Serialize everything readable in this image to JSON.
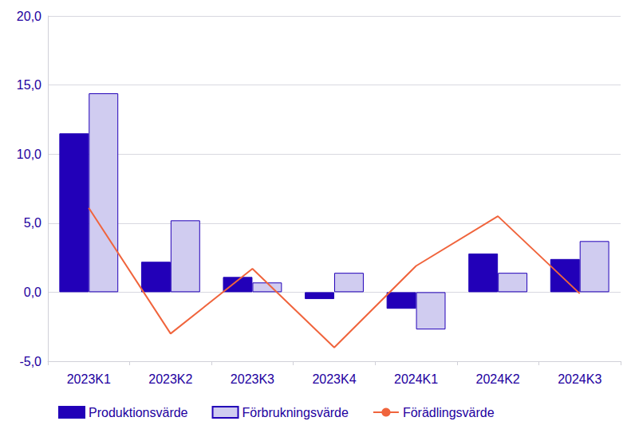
{
  "chart_data": {
    "type": "bar",
    "categories": [
      "2023K1",
      "2023K2",
      "2023K3",
      "2023K4",
      "2024K1",
      "2024K2",
      "2024K3"
    ],
    "series": [
      {
        "name": "Produktionsvärde",
        "type": "bar",
        "color": "#2200b8",
        "values": [
          11.5,
          2.2,
          1.1,
          -0.5,
          -1.2,
          2.8,
          2.4
        ]
      },
      {
        "name": "Förbrukningsvärde",
        "type": "bar",
        "color": "#d0ccf0",
        "values": [
          14.4,
          5.2,
          0.7,
          1.4,
          -2.7,
          1.4,
          3.7
        ]
      },
      {
        "name": "Förädlingsvärde",
        "type": "line",
        "color": "#f0643c",
        "values": [
          6.1,
          -3.0,
          1.7,
          -4.0,
          1.9,
          5.5,
          -0.1
        ]
      }
    ],
    "ylim": [
      -5,
      20
    ],
    "yticks": [
      {
        "value": -5,
        "label": "-5,0"
      },
      {
        "value": 0,
        "label": "0,0"
      },
      {
        "value": 5,
        "label": "5,0"
      },
      {
        "value": 10,
        "label": "10,0"
      },
      {
        "value": 15,
        "label": "15,0"
      },
      {
        "value": 20,
        "label": "20,0"
      }
    ],
    "grid": true,
    "legend": "bottom"
  }
}
